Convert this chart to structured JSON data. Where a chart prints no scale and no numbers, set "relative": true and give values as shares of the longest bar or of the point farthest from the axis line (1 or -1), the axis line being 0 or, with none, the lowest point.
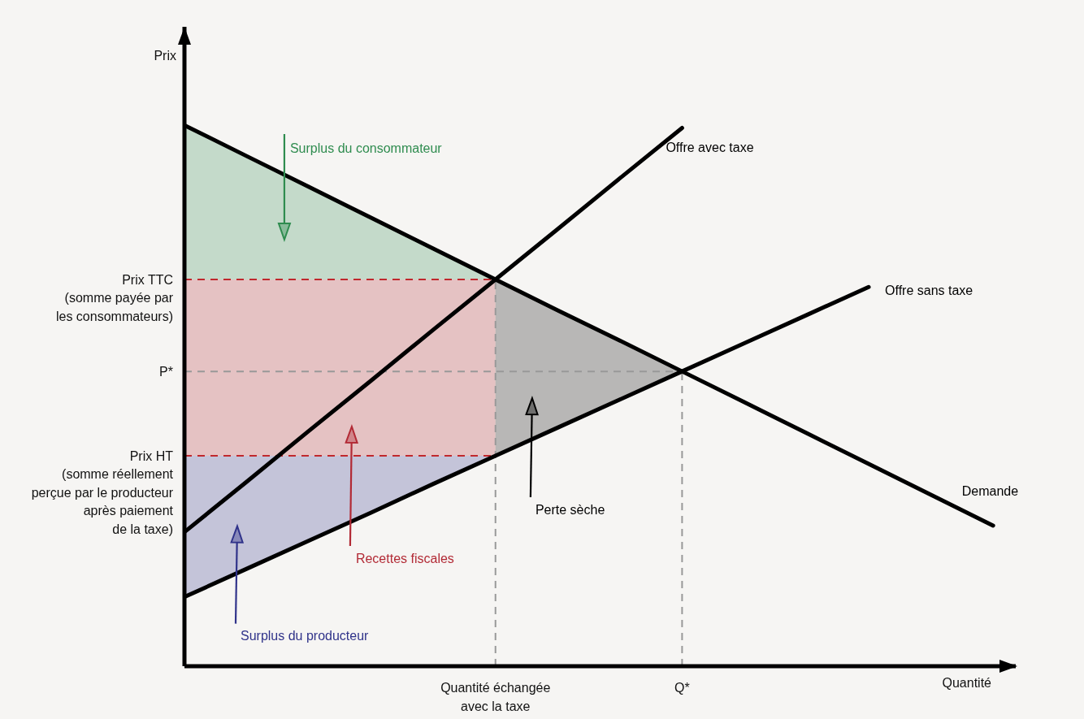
{
  "chart_data": {
    "type": "line",
    "relative": true,
    "xlabel": "Quantité",
    "ylabel": "Prix",
    "marker": "none",
    "categories": [
      null,
      null,
      null,
      null,
      null,
      "Quantité échangée\navec la taxe",
      null,
      null,
      "Q*",
      null,
      null,
      null,
      null,
      null
    ],
    "series": [
      {
        "type": "area",
        "name": "Surplus du consommateur",
        "color": "#2f8c4f",
        "values": [
          null,
          null,
          null,
          null,
          null,
          null,
          null,
          null,
          null,
          null,
          null,
          null,
          null,
          null
        ],
        "lower": [
          0.715,
          0.715,
          0.715,
          0.715,
          0.715,
          0.715,
          null,
          null,
          null,
          null,
          null,
          null,
          null,
          null
        ],
        "upper": [
          1,
          0.943,
          0.886,
          0.829,
          0.772,
          0.715,
          null,
          null,
          null,
          null,
          null,
          null,
          null,
          null
        ]
      },
      {
        "type": "area",
        "name": "Recettes fiscales",
        "color": "#b22a35",
        "values": [
          null,
          null,
          null,
          null,
          null,
          null,
          null,
          null,
          null,
          null,
          null,
          null,
          null,
          null
        ],
        "lower": [
          0.389,
          0.389,
          0.389,
          0.389,
          0.389,
          0.389,
          null,
          null,
          null,
          null,
          null,
          null,
          null,
          null
        ],
        "upper": [
          0.715,
          0.715,
          0.715,
          0.715,
          0.715,
          0.715,
          null,
          null,
          null,
          null,
          null,
          null,
          null,
          null
        ]
      },
      {
        "type": "area",
        "name": "Surplus du producteur",
        "color": "#30338a",
        "values": [
          null,
          null,
          null,
          null,
          null,
          null,
          null,
          null,
          null,
          null,
          null,
          null,
          null,
          null
        ],
        "lower": [
          0.128,
          0.18,
          0.232,
          0.284,
          0.337,
          0.389,
          null,
          null,
          null,
          null,
          null,
          null,
          null,
          null
        ],
        "upper": [
          0.389,
          0.389,
          0.389,
          0.389,
          0.389,
          0.389,
          null,
          null,
          null,
          null,
          null,
          null,
          null,
          null
        ]
      },
      {
        "type": "area",
        "name": "Perte sèche",
        "color": "#000000",
        "values": [
          null,
          null,
          null,
          null,
          null,
          null,
          null,
          null,
          null,
          null,
          null,
          null,
          null,
          null
        ],
        "lower": [
          null,
          null,
          null,
          null,
          null,
          0.389,
          0.441,
          0.493,
          0.545,
          null,
          null,
          null,
          null,
          null
        ],
        "upper": [
          null,
          null,
          null,
          null,
          null,
          0.715,
          0.658,
          0.602,
          0.545,
          null,
          null,
          null,
          null,
          null
        ]
      },
      {
        "name": "Demande",
        "color": "#000000",
        "values": [
          1,
          0.943,
          0.886,
          0.829,
          0.772,
          0.715,
          0.658,
          0.602,
          0.545,
          0.488,
          0.431,
          0.374,
          0.317,
          0.26
        ]
      },
      {
        "name": "Offre sans taxe",
        "color": "#000000",
        "values": [
          0.128,
          0.18,
          0.232,
          0.284,
          0.337,
          0.389,
          0.441,
          0.493,
          0.545,
          0.597,
          0.649,
          0.701,
          null,
          null
        ]
      },
      {
        "name": "Offre avec taxe",
        "color": "#000000",
        "values": [
          0.248,
          0.341,
          0.435,
          0.528,
          0.622,
          0.715,
          0.808,
          0.902,
          0.995,
          null,
          null,
          null,
          null,
          null
        ]
      }
    ],
    "ref_lines": [
      {
        "axis": "y",
        "value": 0.715,
        "label": "Prix TTC\n(somme payée par\nles consommateurs)",
        "color": "#c0282d",
        "line_style": "dashed"
      },
      {
        "axis": "y",
        "value": 0.545,
        "label": "P*",
        "color": "#999999",
        "line_style": "dashed"
      },
      {
        "axis": "y",
        "value": 0.389,
        "label": "Prix HT\n(somme réellement\nperçue par le producteur\naprès paiement\nde la taxe)",
        "color": "#c0282d",
        "line_style": "dashed"
      },
      {
        "axis": "x",
        "value": "Quantité échangée\navec la taxe",
        "color": "#999999",
        "line_style": "dashed"
      },
      {
        "axis": "x",
        "value": "Q*",
        "color": "#999999",
        "line_style": "dashed"
      }
    ]
  }
}
